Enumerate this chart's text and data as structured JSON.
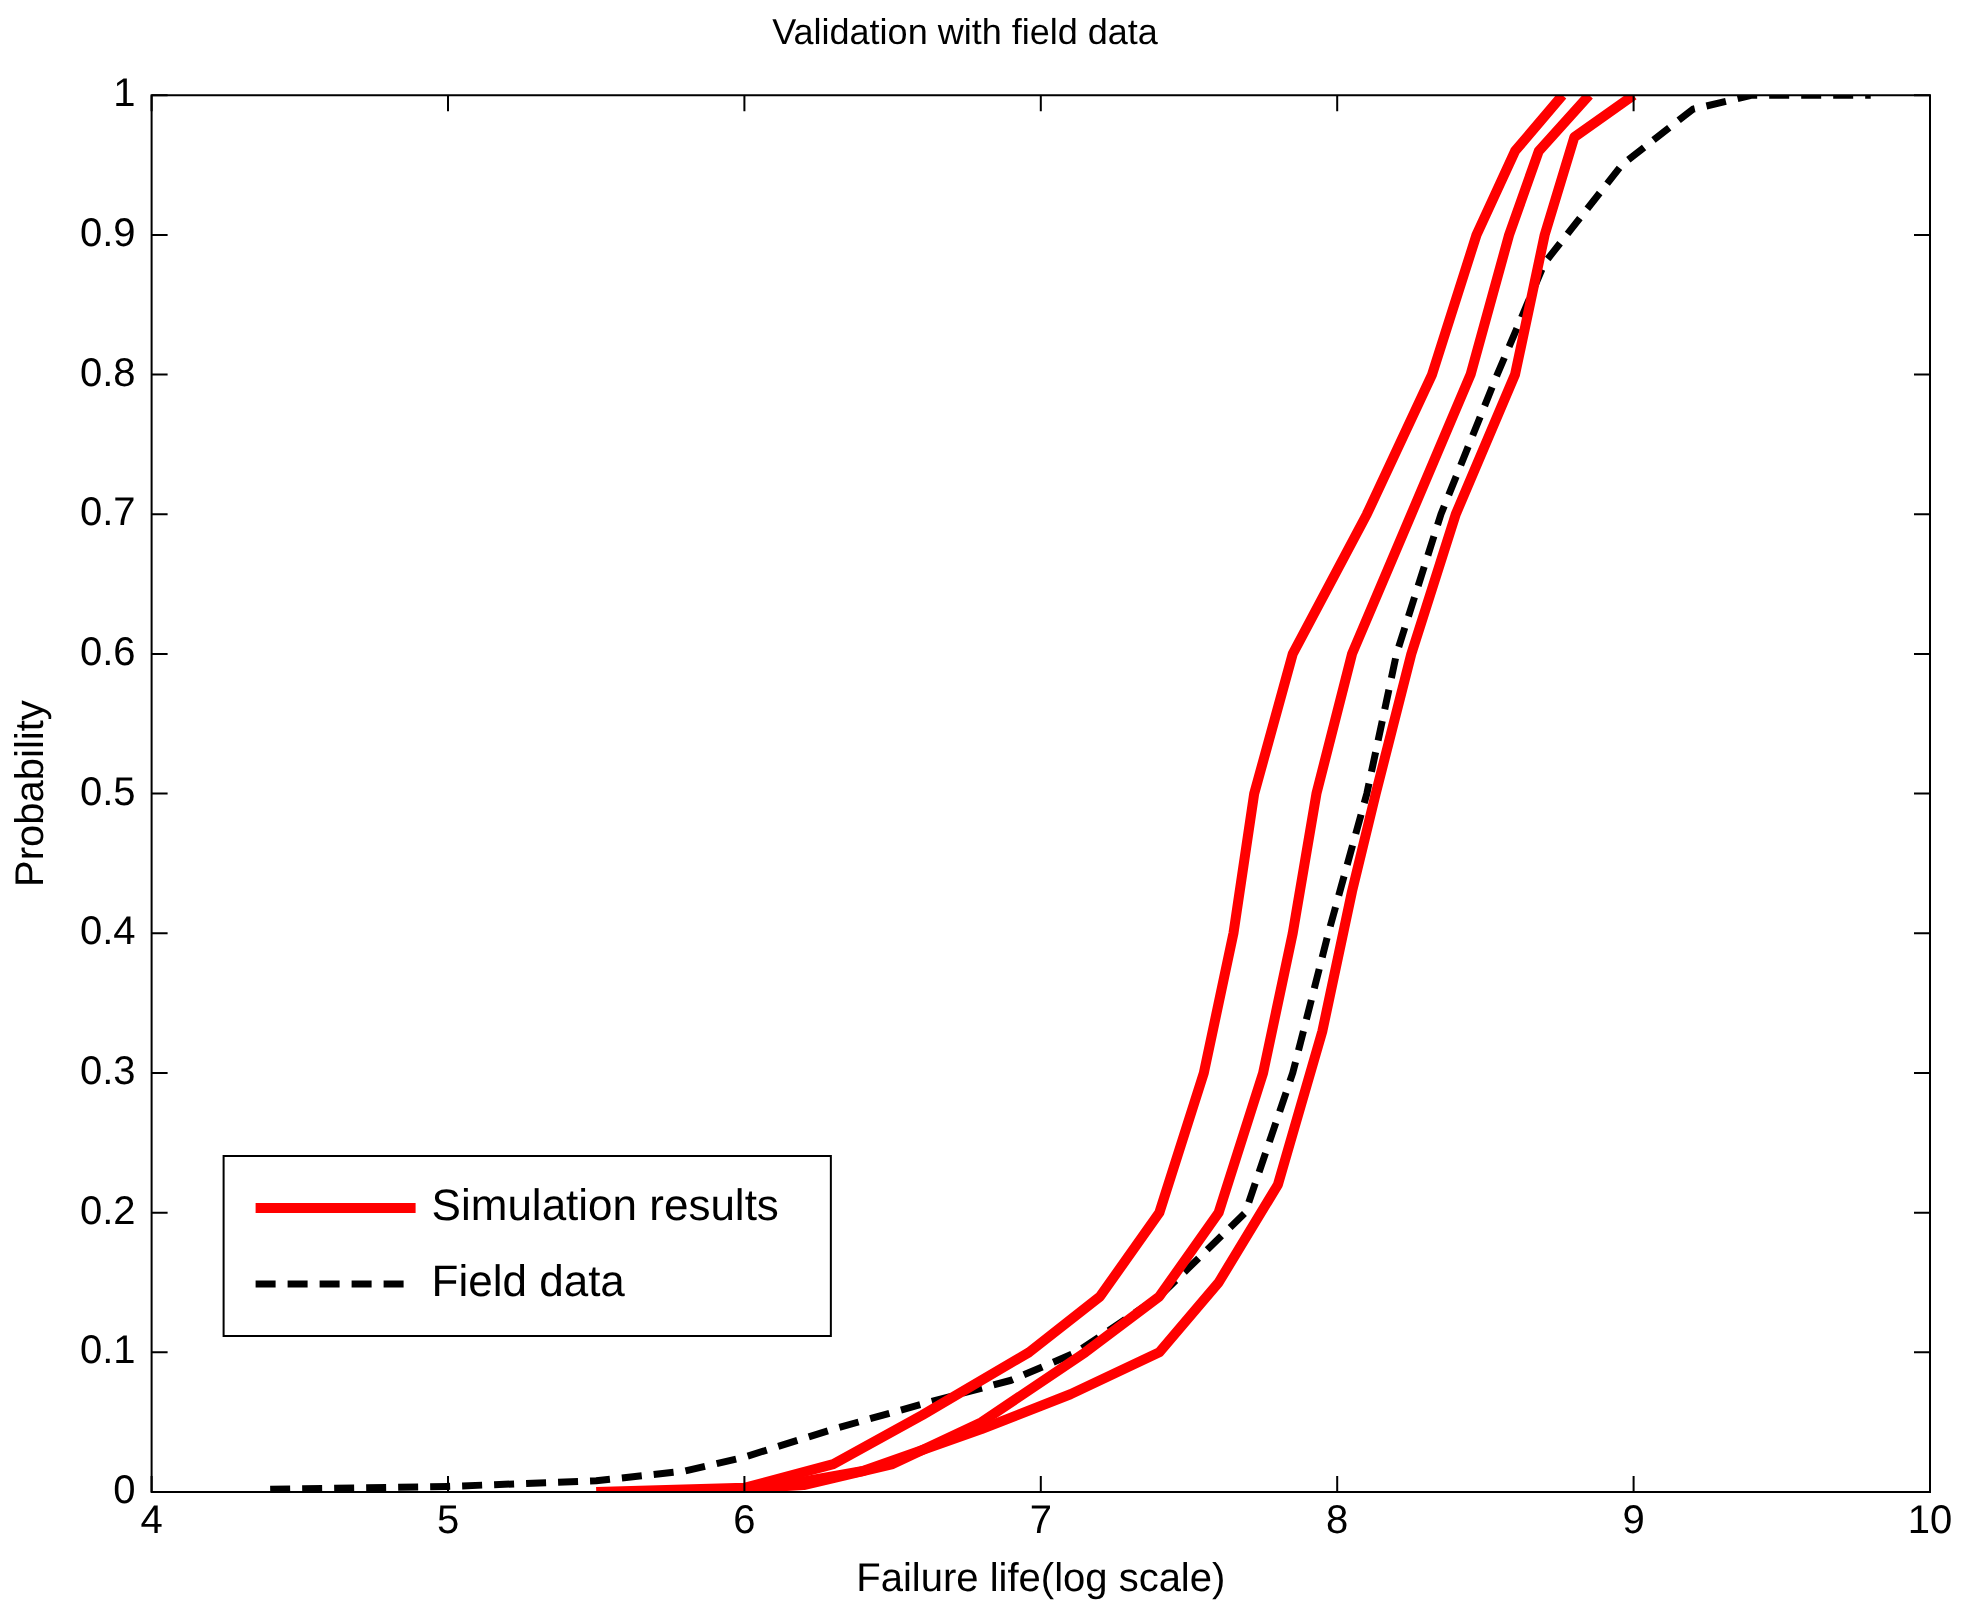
{
  "chart_data": {
    "type": "line",
    "title": "Validation with field data",
    "xlabel": "Failure life(log scale)",
    "ylabel": "Probability",
    "xlim": [
      4,
      10
    ],
    "xticks": [
      4,
      5,
      6,
      7,
      8,
      9,
      10
    ],
    "ylim": [
      0,
      1
    ],
    "yticks": [
      0,
      0.1,
      0.2,
      0.3,
      0.4,
      0.5,
      0.6,
      0.7,
      0.8,
      0.9,
      1
    ],
    "grid": false,
    "legend": "bottom left",
    "marker": "none",
    "series": [
      {
        "name": "Simulation results",
        "color": "#ff0000",
        "line_style": "solid",
        "x": [
          5.5,
          6.0,
          6.3,
          6.6,
          6.96,
          7.2,
          7.4,
          7.55,
          7.65,
          7.72,
          7.85,
          8.1,
          8.32,
          8.47,
          8.6,
          8.76
        ],
        "values": [
          0,
          0.003,
          0.02,
          0.055,
          0.1,
          0.14,
          0.2,
          0.3,
          0.4,
          0.5,
          0.6,
          0.7,
          0.8,
          0.9,
          0.96,
          1
        ]
      },
      {
        "color": "#ff0000",
        "line_style": "solid",
        "x": [
          5.8,
          6.2,
          6.5,
          6.8,
          7.15,
          7.4,
          7.6,
          7.75,
          7.85,
          7.93,
          8.05,
          8.25,
          8.45,
          8.58,
          8.68,
          8.85
        ],
        "values": [
          0,
          0.005,
          0.02,
          0.05,
          0.1,
          0.14,
          0.2,
          0.3,
          0.4,
          0.5,
          0.6,
          0.7,
          0.8,
          0.9,
          0.96,
          1
        ]
      },
      {
        "color": "#ff0000",
        "line_style": "solid",
        "x": [
          6.0,
          6.4,
          6.8,
          7.1,
          7.4,
          7.6,
          7.8,
          7.95,
          8.05,
          8.13,
          8.25,
          8.4,
          8.6,
          8.7,
          8.8,
          9.0
        ],
        "values": [
          0,
          0.015,
          0.045,
          0.07,
          0.1,
          0.15,
          0.22,
          0.33,
          0.43,
          0.5,
          0.6,
          0.7,
          0.8,
          0.9,
          0.97,
          1
        ]
      },
      {
        "name": "Field data",
        "color": "#000000",
        "line_style": "dashed",
        "x": [
          4.4,
          5,
          5.5,
          5.8,
          6,
          6.3,
          6.6,
          6.9,
          7.12,
          7.4,
          7.69,
          7.85,
          7.97,
          8.1,
          8.2,
          8.35,
          8.54,
          8.7,
          8.96,
          9.2,
          9.4,
          9.8
        ],
        "values": [
          0.002,
          0.004,
          0.008,
          0.015,
          0.025,
          0.045,
          0.063,
          0.08,
          0.1,
          0.14,
          0.2,
          0.3,
          0.4,
          0.5,
          0.6,
          0.7,
          0.8,
          0.88,
          0.95,
          0.99,
          1,
          1
        ]
      }
    ]
  }
}
